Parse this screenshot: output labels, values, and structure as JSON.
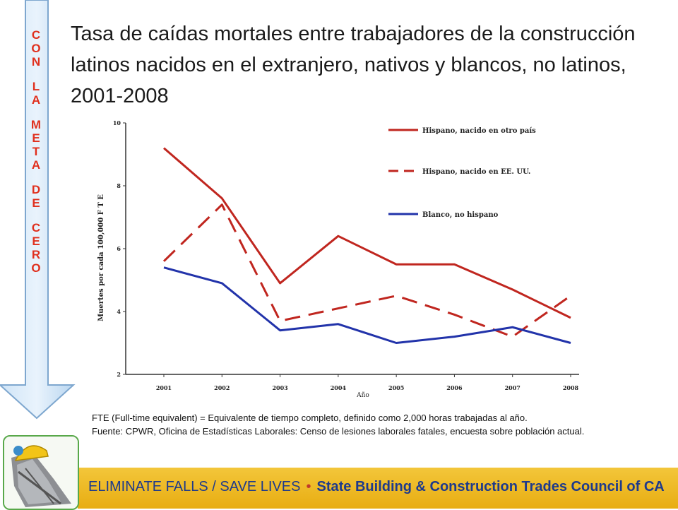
{
  "banner": {
    "letters": [
      [
        "C",
        "O",
        "N"
      ],
      [
        "L",
        "A"
      ],
      [
        "M",
        "E",
        "T",
        "A"
      ],
      [
        "D",
        "E"
      ],
      [
        "C",
        "E",
        "R",
        "O"
      ]
    ]
  },
  "title": "Tasa de caídas mortales entre trabajadores de la construcción latinos nacidos en el extranjero, nativos y blancos, no latinos, 2001-2008",
  "chart_data": {
    "type": "line",
    "x": [
      "2001",
      "2002",
      "2003",
      "2004",
      "2005",
      "2006",
      "2007",
      "2008"
    ],
    "series": [
      {
        "name": "Hispano, nacido en otro país",
        "style": "solid",
        "color": "#c0261f",
        "values": [
          9.2,
          7.6,
          4.9,
          6.4,
          5.5,
          5.5,
          4.7,
          3.8
        ]
      },
      {
        "name": "Hispano, nacido en EE. UU.",
        "style": "dashed",
        "color": "#c0261f",
        "values": [
          5.6,
          7.4,
          3.7,
          4.1,
          4.5,
          3.9,
          3.2,
          4.5
        ]
      },
      {
        "name": "Blanco, no hispano",
        "style": "solid",
        "color": "#2233aa",
        "values": [
          5.4,
          4.9,
          3.4,
          3.6,
          3.0,
          3.2,
          3.5,
          3.0
        ]
      }
    ],
    "ylabel": "Muertes por cada 100,000 F T E",
    "xlabel": "Año",
    "ylim": [
      2,
      10
    ],
    "yticks": [
      "2",
      "4",
      "6",
      "8",
      "10"
    ],
    "grid": false,
    "legend": "top-right"
  },
  "notes": {
    "line1": "FTE (Full-time equivalent) = Equivalente de tiempo completo, definido como 2,000 horas trabajadas al año.",
    "line2": "Fuente: CPWR, Oficina de Estadísticas Laborales: Censo de lesiones laborales fatales, encuesta sobre población actual."
  },
  "footer": {
    "left": "ELIMINATE FALLS / SAVE LIVES",
    "right": "State Building & Construction Trades Council of CA",
    "band_color": "#f0bd2a",
    "text_color": "#1e3a8c"
  }
}
